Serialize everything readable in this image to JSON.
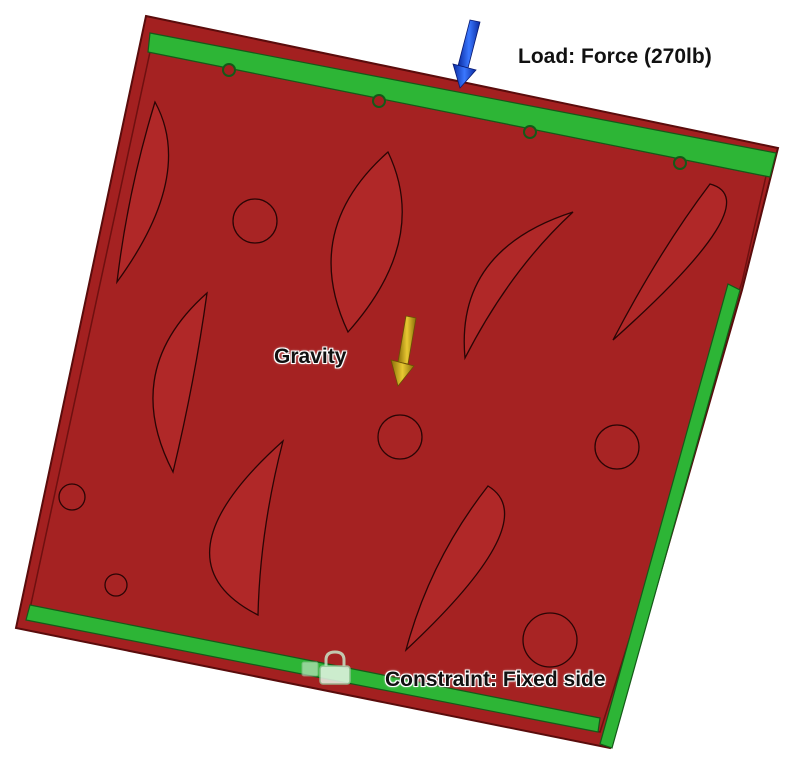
{
  "labels": {
    "load": "Load: Force (270lb)",
    "gravity": "Gravity",
    "constraint": "Constraint: Fixed side"
  },
  "colors": {
    "plate": "#a32020",
    "plate_edge": "#6e1010",
    "plate_side": "#8a1a1a",
    "pocket": "#b52a2a",
    "constraint_face": "#2db536",
    "load_arrow": "#1f4fe0",
    "gravity_arrow": "#c8a614",
    "label_text": "#111111"
  },
  "icons": {
    "constraint": "lock-icon"
  }
}
